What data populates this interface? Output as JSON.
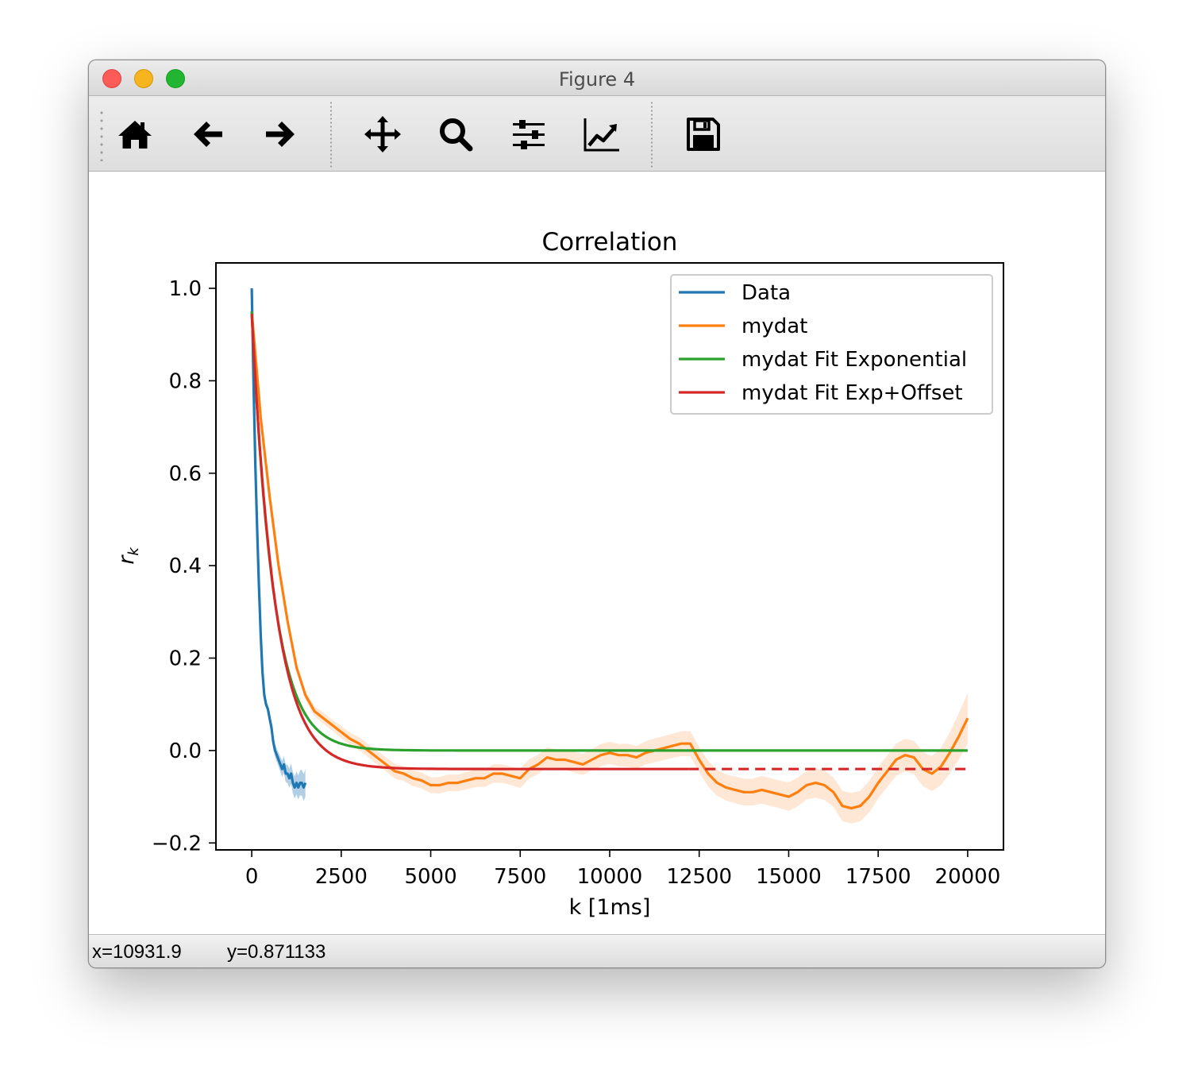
{
  "window": {
    "title": "Figure 4",
    "buttons": [
      "close",
      "minimize",
      "zoom"
    ]
  },
  "toolbar": {
    "items": [
      {
        "name": "home-button",
        "icon": "home-icon"
      },
      {
        "name": "back-button",
        "icon": "arrow-left-icon"
      },
      {
        "name": "forward-button",
        "icon": "arrow-right-icon"
      },
      {
        "name": "pan-button",
        "icon": "move-icon"
      },
      {
        "name": "zoom-button",
        "icon": "magnifier-icon"
      },
      {
        "name": "subplots-button",
        "icon": "sliders-icon"
      },
      {
        "name": "edit-axes-button",
        "icon": "line-chart-icon"
      },
      {
        "name": "save-button",
        "icon": "floppy-disk-icon"
      }
    ]
  },
  "status": {
    "x": "x=10931.9",
    "y": "y=0.871133"
  },
  "chart_data": {
    "type": "line",
    "title": "Correlation",
    "xlabel": "k [1ms]",
    "ylabel": "r",
    "ylabel_subscript": "k",
    "xlim": [
      -1000,
      21000
    ],
    "ylim": [
      -0.215,
      1.055
    ],
    "xticks": [
      0,
      2500,
      5000,
      7500,
      10000,
      12500,
      15000,
      17500,
      20000
    ],
    "xtick_labels": [
      "0",
      "2500",
      "5000",
      "7500",
      "10000",
      "12500",
      "15000",
      "17500",
      "20000"
    ],
    "yticks": [
      -0.2,
      0.0,
      0.2,
      0.4,
      0.6,
      0.8,
      1.0
    ],
    "ytick_labels": [
      "−0.2",
      "0.0",
      "0.2",
      "0.4",
      "0.6",
      "0.8",
      "1.0"
    ],
    "grid": false,
    "legend_position": "top-right",
    "series": [
      {
        "name": "Data",
        "color": "#1f77b4",
        "band_color": "#1f77b4",
        "x": [
          0,
          50,
          100,
          150,
          200,
          250,
          300,
          350,
          400,
          450,
          500,
          550,
          600,
          650,
          700,
          750,
          800,
          850,
          900,
          950,
          1000,
          1050,
          1100,
          1150,
          1200,
          1250,
          1300,
          1350,
          1400,
          1450,
          1500
        ],
        "y": [
          1.0,
          0.8,
          0.62,
          0.48,
          0.36,
          0.25,
          0.17,
          0.12,
          0.1,
          0.09,
          0.07,
          0.05,
          0.02,
          0.0,
          -0.01,
          -0.02,
          -0.03,
          -0.04,
          -0.03,
          -0.05,
          -0.05,
          -0.06,
          -0.05,
          -0.07,
          -0.08,
          -0.07,
          -0.08,
          -0.07,
          -0.07,
          -0.08,
          -0.07
        ],
        "band_half_width": [
          0.005,
          0.005,
          0.005,
          0.005,
          0.006,
          0.006,
          0.007,
          0.008,
          0.008,
          0.009,
          0.01,
          0.011,
          0.012,
          0.013,
          0.014,
          0.015,
          0.016,
          0.017,
          0.018,
          0.019,
          0.02,
          0.021,
          0.022,
          0.023,
          0.024,
          0.025,
          0.026,
          0.027,
          0.028,
          0.029,
          0.03
        ]
      },
      {
        "name": "mydat",
        "color": "#ff7f0e",
        "band_color": "#ffbb88",
        "x": [
          0,
          250,
          500,
          750,
          1000,
          1250,
          1500,
          1750,
          2000,
          2250,
          2500,
          2750,
          3000,
          3250,
          3500,
          3750,
          4000,
          4250,
          4500,
          4750,
          5000,
          5250,
          5500,
          5750,
          6000,
          6250,
          6500,
          6750,
          7000,
          7250,
          7500,
          7750,
          8000,
          8250,
          8500,
          8750,
          9000,
          9250,
          9500,
          9750,
          10000,
          10250,
          10500,
          10750,
          11000,
          11250,
          11500,
          11750,
          12000,
          12250,
          12500,
          12750,
          13000,
          13250,
          13500,
          13750,
          14000,
          14250,
          14500,
          14750,
          15000,
          15250,
          15500,
          15750,
          16000,
          16250,
          16500,
          16750,
          17000,
          17250,
          17500,
          17750,
          18000,
          18250,
          18500,
          18750,
          19000,
          19250,
          19500,
          19750,
          20000
        ],
        "y": [
          0.95,
          0.72,
          0.55,
          0.4,
          0.28,
          0.18,
          0.12,
          0.085,
          0.07,
          0.055,
          0.04,
          0.025,
          0.015,
          0.0,
          -0.015,
          -0.03,
          -0.045,
          -0.05,
          -0.06,
          -0.065,
          -0.075,
          -0.075,
          -0.07,
          -0.07,
          -0.065,
          -0.06,
          -0.06,
          -0.05,
          -0.05,
          -0.055,
          -0.06,
          -0.04,
          -0.03,
          -0.015,
          -0.02,
          -0.02,
          -0.025,
          -0.03,
          -0.02,
          -0.01,
          -0.005,
          -0.01,
          -0.01,
          -0.015,
          -0.005,
          0.0,
          0.005,
          0.01,
          0.015,
          0.015,
          -0.02,
          -0.05,
          -0.07,
          -0.08,
          -0.085,
          -0.09,
          -0.09,
          -0.085,
          -0.09,
          -0.095,
          -0.1,
          -0.09,
          -0.075,
          -0.07,
          -0.075,
          -0.09,
          -0.12,
          -0.125,
          -0.12,
          -0.1,
          -0.07,
          -0.045,
          -0.02,
          -0.01,
          -0.015,
          -0.04,
          -0.05,
          -0.035,
          -0.005,
          0.03,
          0.07
        ],
        "band_half_width": [
          0.005,
          0.006,
          0.006,
          0.007,
          0.008,
          0.009,
          0.01,
          0.011,
          0.012,
          0.012,
          0.013,
          0.013,
          0.014,
          0.014,
          0.015,
          0.015,
          0.016,
          0.016,
          0.017,
          0.017,
          0.017,
          0.018,
          0.018,
          0.018,
          0.019,
          0.019,
          0.019,
          0.02,
          0.02,
          0.02,
          0.021,
          0.021,
          0.021,
          0.022,
          0.022,
          0.022,
          0.023,
          0.023,
          0.023,
          0.024,
          0.024,
          0.024,
          0.025,
          0.025,
          0.025,
          0.026,
          0.026,
          0.026,
          0.027,
          0.027,
          0.027,
          0.028,
          0.028,
          0.028,
          0.029,
          0.029,
          0.029,
          0.03,
          0.03,
          0.03,
          0.031,
          0.031,
          0.031,
          0.032,
          0.032,
          0.032,
          0.033,
          0.033,
          0.033,
          0.034,
          0.034,
          0.034,
          0.035,
          0.035,
          0.036,
          0.037,
          0.038,
          0.04,
          0.045,
          0.05,
          0.055
        ]
      },
      {
        "name": "mydat Fit Exponential",
        "color": "#2ca02c",
        "function": "exponential",
        "params": {
          "amplitude": 0.95,
          "tau": 600,
          "offset": 0.0
        },
        "x_range": [
          0,
          20000
        ]
      },
      {
        "name": "mydat Fit Exp+Offset",
        "color": "#d62728",
        "function": "exponential",
        "params": {
          "amplitude": 0.985,
          "tau": 650,
          "offset": -0.04
        },
        "x_range": [
          0,
          20000
        ],
        "solid_until": 12200
      }
    ]
  }
}
